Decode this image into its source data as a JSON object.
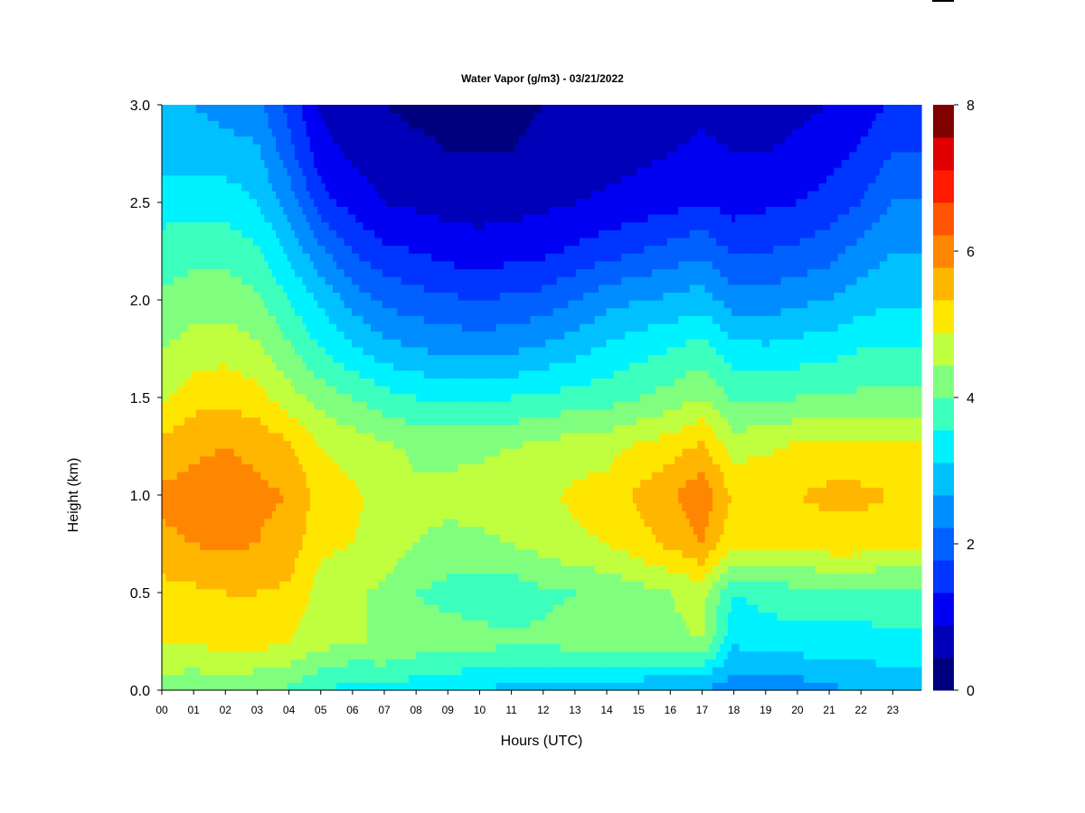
{
  "chart_data": {
    "type": "heatmap",
    "title": "Water Vapor (g/m3) - 03/21/2022",
    "xlabel": "Hours (UTC)",
    "ylabel": "Height (km)",
    "xlim": [
      0,
      23.9
    ],
    "ylim": [
      0,
      3
    ],
    "x_ticks": [
      0,
      1,
      2,
      3,
      4,
      5,
      6,
      7,
      8,
      9,
      10,
      11,
      12,
      13,
      14,
      15,
      16,
      17,
      18,
      19,
      20,
      21,
      22,
      23
    ],
    "x_tick_labels": [
      "00",
      "01",
      "02",
      "03",
      "04",
      "05",
      "06",
      "07",
      "08",
      "09",
      "10",
      "11",
      "12",
      "13",
      "14",
      "15",
      "16",
      "17",
      "18",
      "19",
      "20",
      "21",
      "22",
      "23"
    ],
    "y_ticks": [
      0.0,
      0.5,
      1.0,
      1.5,
      2.0,
      2.5,
      3.0
    ],
    "y_tick_labels": [
      "0.0",
      "0.5",
      "1.0",
      "1.5",
      "2.0",
      "2.5",
      "3.0"
    ],
    "colorbar": {
      "min": 0,
      "max": 8,
      "levels": 16,
      "ticks": [
        0,
        2,
        4,
        6,
        8
      ],
      "tick_labels": [
        "0",
        "2",
        "4",
        "6",
        "8"
      ],
      "colors": [
        "#00007f",
        "#0000b8",
        "#0000f2",
        "#0035ff",
        "#0061ff",
        "#008dff",
        "#00c0ff",
        "#00f1ff",
        "#3dffbd",
        "#80ff7f",
        "#c0ff3f",
        "#ffe600",
        "#ffb600",
        "#ff8600",
        "#ff5500",
        "#ff1a00"
      ],
      "top_colors": [
        "#e10000",
        "#7f0000"
      ]
    },
    "grid": false,
    "hours": [
      0,
      1,
      2,
      3,
      4,
      5,
      6,
      7,
      8,
      9,
      10,
      11,
      12,
      13,
      14,
      15,
      16,
      17,
      18,
      19,
      20,
      21,
      22,
      23
    ],
    "heights_km": [
      0.0,
      0.25,
      0.5,
      0.75,
      1.0,
      1.25,
      1.5,
      1.75,
      2.0,
      2.25,
      2.5,
      2.75,
      3.0
    ],
    "values": [
      [
        4.8,
        5.6,
        5.8,
        6.4,
        6.6,
        6.2,
        5.4,
        5.0,
        4.6,
        4.2,
        3.8,
        3.3,
        3.0
      ],
      [
        4.6,
        5.5,
        5.9,
        6.5,
        6.7,
        6.4,
        5.8,
        5.2,
        4.8,
        4.3,
        3.8,
        3.3,
        3.0
      ],
      [
        4.7,
        5.8,
        6.0,
        6.6,
        6.7,
        6.5,
        5.9,
        5.3,
        4.8,
        4.3,
        3.8,
        3.2,
        2.8
      ],
      [
        4.5,
        5.7,
        6.0,
        6.5,
        6.6,
        6.4,
        5.7,
        5.1,
        4.6,
        4.1,
        3.5,
        3.1,
        2.7
      ],
      [
        4.4,
        5.5,
        5.9,
        6.3,
        6.5,
        6.1,
        5.2,
        4.6,
        4.0,
        3.4,
        2.8,
        2.2,
        1.8
      ],
      [
        4.0,
        5.2,
        5.3,
        5.6,
        5.8,
        5.5,
        4.8,
        4.0,
        3.4,
        2.6,
        1.7,
        1.2,
        0.9
      ],
      [
        3.8,
        5.0,
        5.1,
        5.5,
        5.6,
        5.3,
        4.5,
        3.6,
        2.8,
        2.0,
        1.3,
        0.9,
        0.7
      ],
      [
        3.9,
        5.0,
        4.9,
        5.3,
        5.3,
        5.1,
        4.2,
        3.2,
        2.4,
        1.6,
        1.0,
        0.7,
        0.5
      ],
      [
        3.7,
        4.8,
        4.5,
        5.0,
        5.1,
        4.9,
        4.0,
        3.0,
        2.2,
        1.5,
        0.9,
        0.6,
        0.4
      ],
      [
        3.6,
        4.8,
        4.3,
        4.9,
        5.1,
        4.9,
        3.9,
        2.9,
        2.1,
        1.3,
        0.8,
        0.5,
        0.4
      ],
      [
        3.4,
        4.7,
        4.2,
        4.9,
        5.2,
        4.9,
        3.9,
        2.8,
        2.0,
        1.2,
        0.8,
        0.5,
        0.4
      ],
      [
        3.4,
        4.6,
        4.2,
        5.0,
        5.3,
        5.0,
        4.0,
        2.9,
        2.1,
        1.3,
        0.8,
        0.5,
        0.4
      ],
      [
        3.4,
        4.6,
        4.4,
        5.2,
        5.4,
        5.1,
        4.1,
        3.1,
        2.2,
        1.4,
        0.9,
        0.6,
        0.5
      ],
      [
        3.3,
        4.7,
        4.5,
        5.4,
        5.6,
        5.3,
        4.2,
        3.3,
        2.5,
        1.6,
        1.0,
        0.7,
        0.5
      ],
      [
        3.2,
        4.7,
        4.6,
        5.5,
        5.7,
        5.3,
        4.3,
        3.6,
        2.8,
        1.8,
        1.1,
        0.8,
        0.6
      ],
      [
        3.1,
        4.8,
        4.8,
        5.8,
        6.1,
        5.6,
        4.5,
        3.8,
        3.0,
        2.0,
        1.2,
        0.9,
        0.7
      ],
      [
        3.0,
        4.9,
        5.0,
        6.1,
        6.4,
        5.8,
        4.7,
        4.0,
        3.1,
        2.2,
        1.3,
        1.0,
        0.8
      ],
      [
        3.0,
        5.0,
        5.2,
        6.5,
        6.9,
        6.1,
        5.0,
        4.2,
        3.3,
        2.4,
        1.5,
        1.1,
        0.9
      ],
      [
        2.6,
        3.6,
        4.0,
        5.6,
        5.9,
        5.3,
        4.4,
        3.7,
        2.7,
        1.9,
        1.3,
        1.0,
        0.8
      ],
      [
        2.7,
        3.7,
        4.2,
        5.6,
        5.9,
        5.4,
        4.4,
        3.6,
        2.7,
        2.0,
        1.4,
        1.0,
        0.8
      ],
      [
        2.7,
        3.8,
        4.3,
        5.7,
        6.0,
        5.6,
        4.5,
        3.7,
        2.9,
        2.1,
        1.5,
        1.1,
        0.9
      ],
      [
        2.9,
        3.8,
        4.3,
        5.8,
        6.1,
        5.7,
        4.6,
        3.8,
        3.0,
        2.3,
        1.7,
        1.3,
        1.0
      ],
      [
        3.0,
        3.8,
        4.3,
        5.8,
        6.1,
        5.7,
        4.6,
        4.0,
        3.3,
        2.7,
        2.0,
        1.6,
        1.2
      ],
      [
        3.1,
        3.9,
        4.3,
        5.7,
        6.0,
        5.6,
        4.6,
        4.0,
        3.4,
        3.0,
        2.5,
        2.0,
        1.6
      ]
    ]
  }
}
